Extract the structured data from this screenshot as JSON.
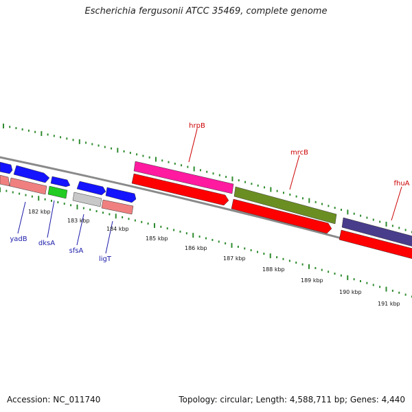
{
  "title": "Escherichia fergusonii ATCC 35469, complete genome",
  "footer": {
    "accession": "Accession: NC_011740",
    "summary": "Topology: circular; Length: 4,588,711 bp; Genes: 4,440"
  },
  "kbp_labels": [
    "182 kbp",
    "183 kbp",
    "184 kbp",
    "185 kbp",
    "186 kbp",
    "187 kbp",
    "188 kbp",
    "189 kbp",
    "190 kbp",
    "191 kbp"
  ],
  "gene_labels": {
    "top": [
      "hrpB",
      "mrcB",
      "fhuA"
    ],
    "bottom": [
      "yadB",
      "dksA",
      "sfsA",
      "ligT"
    ]
  },
  "colors": {
    "backbone": "#8a8a8a",
    "tick": "#2e8b2e",
    "label_top": "#cc0000",
    "label_bottom": "#1a1aaa",
    "gene_red": "#ff0000",
    "gene_pink": "#ff1aa0",
    "gene_olive": "#6b8e23",
    "gene_purple": "#483d8b",
    "gene_blue": "#1414ff",
    "gene_salmon": "#f08080",
    "gene_green": "#22cc22",
    "gene_gray": "#c8c8c8"
  }
}
